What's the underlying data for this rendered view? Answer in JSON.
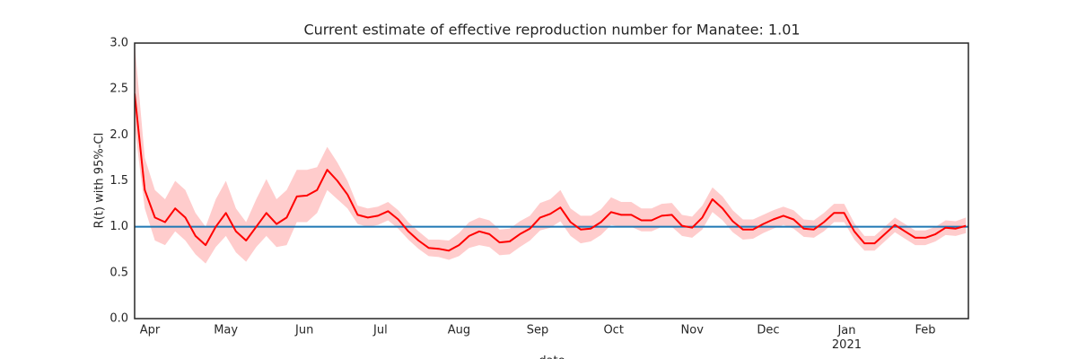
{
  "chart_data": {
    "type": "line",
    "title": "Current estimate of effective reproduction number for Manatee: 1.01",
    "ylabel": "R(t) with 95%-CI",
    "xlabel": "date",
    "color": "#ff0000",
    "band_color": "#ffcccc",
    "reference_line": {
      "value": 1,
      "color": "#1f77b4"
    },
    "xlim": [
      "2020-03-26",
      "2021-02-18"
    ],
    "ylim": [
      0,
      3
    ],
    "yticks": [
      {
        "value": 0,
        "label": "0.0"
      },
      {
        "value": 0.5,
        "label": "0.5"
      },
      {
        "value": 1,
        "label": "1.0"
      },
      {
        "value": 1.5,
        "label": "1.5"
      },
      {
        "value": 2,
        "label": "2.0"
      },
      {
        "value": 2.5,
        "label": "2.5"
      },
      {
        "value": 3,
        "label": "3.0"
      }
    ],
    "xticks": [
      {
        "value": "2020-04-01",
        "label": "Apr"
      },
      {
        "value": "2020-05-01",
        "label": "May"
      },
      {
        "value": "2020-06-01",
        "label": "Jun"
      },
      {
        "value": "2020-07-01",
        "label": "Jul"
      },
      {
        "value": "2020-08-01",
        "label": "Aug"
      },
      {
        "value": "2020-09-01",
        "label": "Sep"
      },
      {
        "value": "2020-10-01",
        "label": "Oct"
      },
      {
        "value": "2020-11-01",
        "label": "Nov"
      },
      {
        "value": "2020-12-01",
        "label": "Dec"
      },
      {
        "value": "2021-01-01",
        "label": "Jan\n2021"
      },
      {
        "value": "2021-02-01",
        "label": "Feb"
      }
    ],
    "x": [
      "2020-03-26",
      "2020-03-30",
      "2020-04-03",
      "2020-04-07",
      "2020-04-11",
      "2020-04-15",
      "2020-04-19",
      "2020-04-23",
      "2020-04-27",
      "2020-05-01",
      "2020-05-05",
      "2020-05-09",
      "2020-05-13",
      "2020-05-17",
      "2020-05-21",
      "2020-05-25",
      "2020-05-29",
      "2020-06-02",
      "2020-06-06",
      "2020-06-10",
      "2020-06-14",
      "2020-06-18",
      "2020-06-22",
      "2020-06-26",
      "2020-06-30",
      "2020-07-04",
      "2020-07-08",
      "2020-07-12",
      "2020-07-16",
      "2020-07-20",
      "2020-07-24",
      "2020-07-28",
      "2020-08-01",
      "2020-08-05",
      "2020-08-09",
      "2020-08-13",
      "2020-08-17",
      "2020-08-21",
      "2020-08-25",
      "2020-08-29",
      "2020-09-02",
      "2020-09-06",
      "2020-09-10",
      "2020-09-14",
      "2020-09-18",
      "2020-09-22",
      "2020-09-26",
      "2020-09-30",
      "2020-10-04",
      "2020-10-08",
      "2020-10-12",
      "2020-10-16",
      "2020-10-20",
      "2020-10-24",
      "2020-10-28",
      "2020-11-01",
      "2020-11-05",
      "2020-11-09",
      "2020-11-13",
      "2020-11-17",
      "2020-11-21",
      "2020-11-25",
      "2020-11-29",
      "2020-12-03",
      "2020-12-07",
      "2020-12-11",
      "2020-12-15",
      "2020-12-19",
      "2020-12-23",
      "2020-12-27",
      "2020-12-31",
      "2021-01-04",
      "2021-01-08",
      "2021-01-12",
      "2021-01-16",
      "2021-01-20",
      "2021-01-24",
      "2021-01-28",
      "2021-02-01",
      "2021-02-05",
      "2021-02-09",
      "2021-02-13",
      "2021-02-17"
    ],
    "values": [
      2.45,
      1.4,
      1.1,
      1.05,
      1.2,
      1.1,
      0.9,
      0.8,
      1.0,
      1.15,
      0.95,
      0.85,
      1.0,
      1.15,
      1.03,
      1.1,
      1.33,
      1.34,
      1.4,
      1.62,
      1.5,
      1.35,
      1.13,
      1.1,
      1.12,
      1.17,
      1.08,
      0.95,
      0.85,
      0.77,
      0.76,
      0.74,
      0.8,
      0.9,
      0.95,
      0.92,
      0.83,
      0.84,
      0.92,
      0.98,
      1.1,
      1.14,
      1.21,
      1.05,
      0.97,
      0.98,
      1.05,
      1.16,
      1.13,
      1.13,
      1.07,
      1.07,
      1.12,
      1.13,
      1.01,
      0.99,
      1.1,
      1.3,
      1.2,
      1.06,
      0.97,
      0.97,
      1.03,
      1.08,
      1.12,
      1.08,
      0.98,
      0.97,
      1.05,
      1.15,
      1.15,
      0.95,
      0.82,
      0.82,
      0.92,
      1.02,
      0.95,
      0.88,
      0.88,
      0.92,
      0.99,
      0.98,
      1.01
    ],
    "lower": [
      2.1,
      1.2,
      0.85,
      0.8,
      0.95,
      0.85,
      0.7,
      0.6,
      0.78,
      0.9,
      0.72,
      0.62,
      0.78,
      0.9,
      0.78,
      0.8,
      1.05,
      1.05,
      1.15,
      1.4,
      1.3,
      1.2,
      1.03,
      1.0,
      1.02,
      1.07,
      0.98,
      0.86,
      0.76,
      0.68,
      0.67,
      0.64,
      0.68,
      0.77,
      0.8,
      0.78,
      0.69,
      0.7,
      0.78,
      0.85,
      0.96,
      0.99,
      1.06,
      0.9,
      0.82,
      0.84,
      0.91,
      1.02,
      1.0,
      1.0,
      0.95,
      0.95,
      1.0,
      1.0,
      0.9,
      0.88,
      0.97,
      1.16,
      1.07,
      0.94,
      0.86,
      0.87,
      0.93,
      0.98,
      1.02,
      0.98,
      0.89,
      0.88,
      0.95,
      1.05,
      1.05,
      0.86,
      0.74,
      0.74,
      0.84,
      0.94,
      0.87,
      0.8,
      0.8,
      0.84,
      0.91,
      0.9,
      0.93
    ],
    "upper": [
      3.0,
      1.75,
      1.4,
      1.3,
      1.5,
      1.4,
      1.15,
      1.0,
      1.3,
      1.5,
      1.2,
      1.05,
      1.3,
      1.52,
      1.3,
      1.4,
      1.62,
      1.62,
      1.65,
      1.87,
      1.7,
      1.5,
      1.23,
      1.2,
      1.22,
      1.27,
      1.18,
      1.05,
      0.95,
      0.86,
      0.86,
      0.85,
      0.93,
      1.05,
      1.1,
      1.07,
      0.97,
      0.98,
      1.06,
      1.12,
      1.26,
      1.3,
      1.4,
      1.2,
      1.12,
      1.12,
      1.19,
      1.32,
      1.27,
      1.27,
      1.2,
      1.2,
      1.25,
      1.26,
      1.13,
      1.11,
      1.23,
      1.43,
      1.33,
      1.18,
      1.08,
      1.08,
      1.13,
      1.18,
      1.22,
      1.18,
      1.08,
      1.07,
      1.15,
      1.25,
      1.25,
      1.04,
      0.9,
      0.9,
      1.0,
      1.1,
      1.03,
      0.96,
      0.96,
      1.0,
      1.07,
      1.06,
      1.1
    ]
  }
}
